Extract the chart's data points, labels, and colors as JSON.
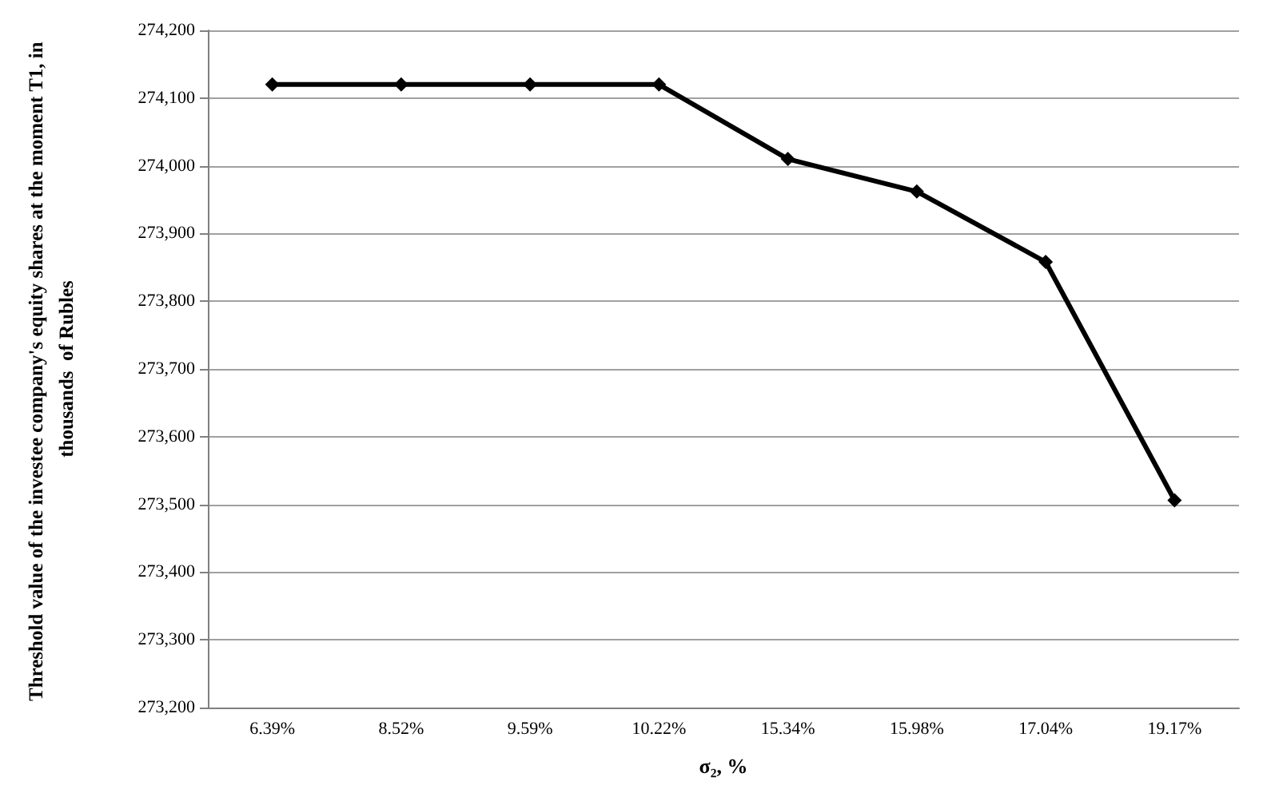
{
  "chart_data": {
    "type": "line",
    "categories": [
      "6.39%",
      "8.52%",
      "9.59%",
      "10.22%",
      "15.34%",
      "15.98%",
      "17.04%",
      "19.17%"
    ],
    "series": [
      {
        "color": "#000000",
        "values": [
          274120,
          274120,
          274120,
          274120,
          274010,
          273962,
          273858,
          273506
        ]
      }
    ],
    "xlabel": "σ₂, %",
    "ylabel": "Threshold value of the investee company's equity shares at the moment T1, in thousands  of Rubles",
    "ylim": [
      273200,
      274200
    ],
    "yticks": [
      {
        "value": 273200,
        "label": "273,200"
      },
      {
        "value": 273300,
        "label": "273,300"
      },
      {
        "value": 273400,
        "label": "273,400"
      },
      {
        "value": 273500,
        "label": "273,500"
      },
      {
        "value": 273600,
        "label": "273,600"
      },
      {
        "value": 273700,
        "label": "273,700"
      },
      {
        "value": 273800,
        "label": "273,800"
      },
      {
        "value": 273900,
        "label": "273,900"
      },
      {
        "value": 274000,
        "label": "274,000"
      },
      {
        "value": 274100,
        "label": "274,100"
      },
      {
        "value": 274200,
        "label": "274,200"
      }
    ],
    "grid": "y",
    "marker": "diamond",
    "line_style": "solid"
  }
}
